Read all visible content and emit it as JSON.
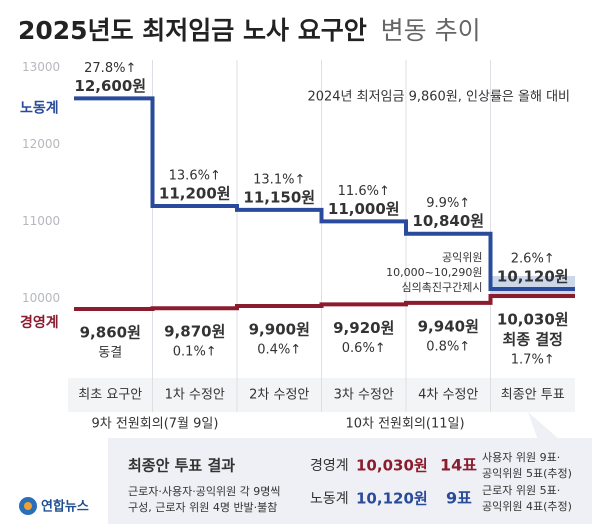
{
  "chart_data": {
    "type": "step",
    "title": "2025년도 최저임금 노사 요구안",
    "subtitle": "변동 추이",
    "note": "2024년 최저임금 9,860원, 인상률은 올해 대비",
    "categories": [
      "최초 요구안",
      "1차 수정안",
      "2차 수정안",
      "3차 수정안",
      "4차 수정안",
      "최종안 투표"
    ],
    "groups": [
      "9차 전원회의(7월 9일)",
      "10차 전원회의(11일)"
    ],
    "ylim": [
      9600,
      13100
    ],
    "yticks": [
      10000,
      11000,
      12000,
      13000
    ],
    "grid": false,
    "series": [
      {
        "name": "노동계",
        "color": "#2a4b9b",
        "values": [
          12600,
          11200,
          11150,
          11000,
          10840,
          10120
        ],
        "value_labels": [
          "12,600원",
          "11,200원",
          "11,150원",
          "11,000원",
          "10,840원",
          "10,120원"
        ],
        "change_labels": [
          "27.8%↑",
          "13.6%↑",
          "13.1%↑",
          "11.6%↑",
          "9.9%↑",
          "2.6%↑"
        ]
      },
      {
        "name": "경영계",
        "color": "#8b1c2e",
        "values": [
          9860,
          9870,
          9900,
          9920,
          9940,
          10030
        ],
        "value_labels": [
          "9,860원",
          "9,870원",
          "9,900원",
          "9,920원",
          "9,940원",
          "10,030원"
        ],
        "change_labels": [
          "동결",
          "0.1%↑",
          "0.4%↑",
          "0.6%↑",
          "0.8%↑",
          "1.7%↑"
        ],
        "final_note": "최종 결정"
      }
    ],
    "band": {
      "from": 10000,
      "to": 10290,
      "color": "#b7c6df",
      "title": "공익위원",
      "label": "10,000~10,290원",
      "note": "심의촉진구간제시"
    }
  },
  "result": {
    "title": "최종안 투표 결과",
    "note": [
      "근로자·사용자·공익위원 각 9명씩",
      "구성, 근로자 위원 4명 반발·불참"
    ],
    "rows": [
      {
        "name": "경영계",
        "amount": "10,030원",
        "votes": "14표",
        "detail": [
          "사용자 위원 9표·",
          "공익위원 5표(추정)"
        ]
      },
      {
        "name": "노동계",
        "amount": "10,120원",
        "votes": "9표",
        "detail": [
          "근로자 위원 5표·",
          "공익위원 4표(추정)"
        ]
      }
    ]
  },
  "source": "연합뉴스"
}
